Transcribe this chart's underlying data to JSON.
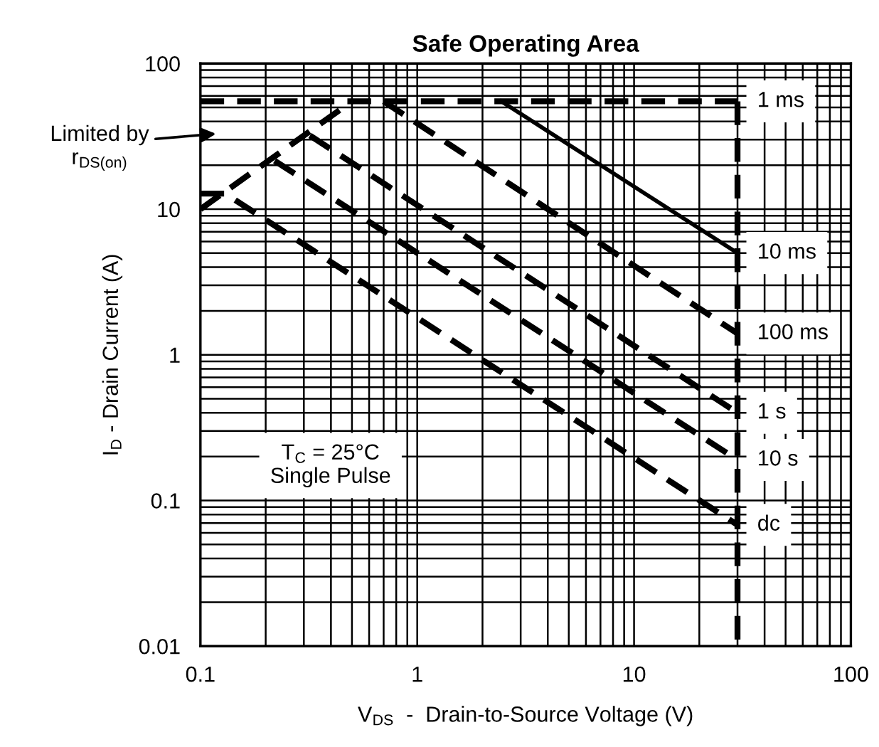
{
  "chart_data": {
    "type": "line",
    "title": "Safe Operating Area",
    "xlabel": "V$_{DS}$  -  Drain-to-Source Voltage (V)",
    "ylabel": "I$_{D}$ - Drain Current (A)",
    "log": "xy",
    "xlim": [
      0.1,
      100
    ],
    "ylim": [
      0.01,
      100
    ],
    "xticks": [
      0.1,
      1,
      10,
      100
    ],
    "yticks": [
      0.01,
      0.1,
      1,
      10,
      100
    ],
    "grid": true,
    "legend": false,
    "marker": "none",
    "series": [
      {
        "color": "#000000",
        "line_style": "dashed",
        "x": [
          0.1,
          0.5
        ],
        "values": [
          10,
          55
        ]
      },
      {
        "name": "1 ms",
        "color": "#000000",
        "line_style": "dashed",
        "x": [
          0.1,
          30
        ],
        "values": [
          55,
          55
        ]
      },
      {
        "name": "10 ms",
        "color": "#000000",
        "line_style": "solid",
        "x": [
          2.44,
          30
        ],
        "values": [
          55,
          5.0
        ]
      },
      {
        "name": "100 ms",
        "color": "#000000",
        "line_style": "dashed",
        "x": [
          0.7,
          30
        ],
        "values": [
          55,
          1.4
        ]
      },
      {
        "name": "1 s",
        "color": "#000000",
        "line_style": "dashed",
        "x": [
          0.32,
          30
        ],
        "values": [
          32,
          0.4
        ]
      },
      {
        "name": "10 s",
        "color": "#000000",
        "line_style": "dashed",
        "x": [
          0.22,
          30
        ],
        "values": [
          21.5,
          0.19
        ]
      },
      {
        "name": "dc",
        "color": "#000000",
        "line_style": "dashed",
        "x": [
          0.1,
          0.13,
          30
        ],
        "values": [
          12.8,
          12.8,
          0.068
        ]
      },
      {
        "color": "#000000",
        "line_style": "dashed",
        "x": [
          30,
          30
        ],
        "values": [
          55,
          0.01
        ]
      }
    ],
    "annotations": [
      "Limited by\nr$_{DS(on)}$",
      "T$_{C}$ = 25°C\nSingle Pulse"
    ]
  }
}
